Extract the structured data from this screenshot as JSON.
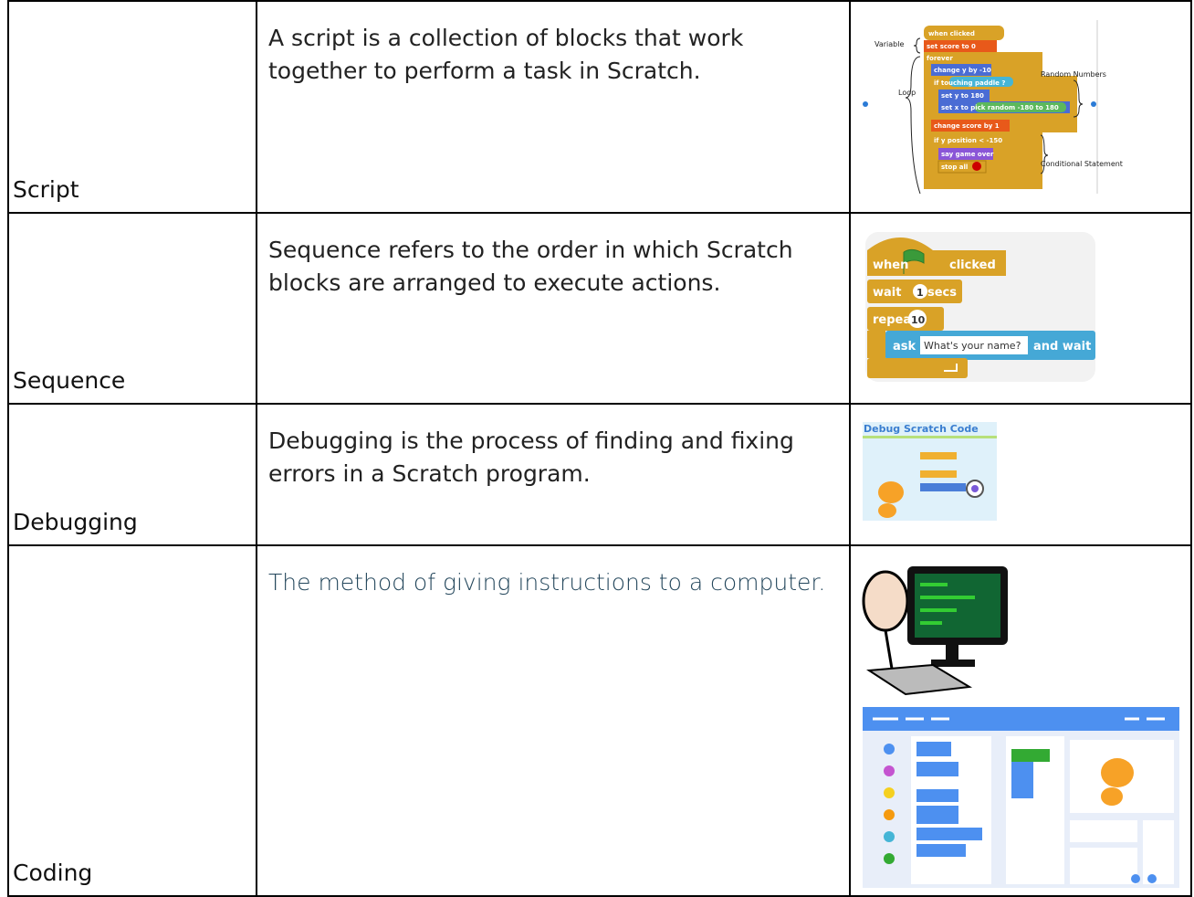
{
  "rows": [
    {
      "term": "Script",
      "definition": "A script is a collection of blocks that work together to perform a task in Scratch.",
      "image": {
        "labels": [
          "Variable",
          "Loop",
          "Random Numbers",
          "Conditional Statement"
        ],
        "blocks": [
          "when clicked",
          "set score to 0",
          "forever",
          "change y by -10",
          "if touching paddle ?",
          "set y to 180",
          "set x to pick random -180 to 180",
          "change score by 1",
          "if y position < -150",
          "say game over",
          "stop all"
        ]
      }
    },
    {
      "term": "Sequence",
      "definition": "Sequence refers to the order in which Scratch blocks are arranged to execute actions.",
      "image": {
        "blocks": [
          "when",
          "clicked",
          "wait",
          "1",
          "secs",
          "repeat",
          "10",
          "ask",
          "What's your name?",
          "and wait"
        ]
      }
    },
    {
      "term": "Debugging",
      "definition": "Debugging is the process of finding and fixing errors in a Scratch program.",
      "image": {
        "title": "Debug Scratch Code"
      }
    },
    {
      "term": "Coding",
      "definition": "The method of giving instructions to a computer."
    }
  ]
}
